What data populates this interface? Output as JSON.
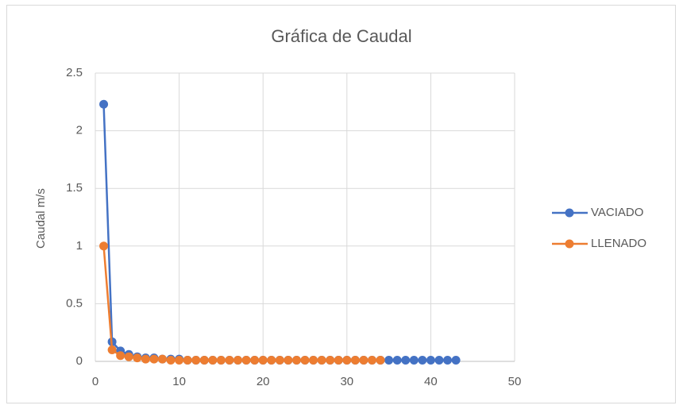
{
  "chart_data": {
    "type": "line",
    "title": "Gráfica de Caudal",
    "y_label": "Caudal m/s",
    "xlim": [
      0,
      50
    ],
    "xticks": [
      0,
      10,
      20,
      30,
      40,
      50
    ],
    "ylim": [
      0,
      2.5
    ],
    "yticks": [
      0,
      0.5,
      1,
      1.5,
      2,
      2.5
    ],
    "grid": true,
    "legend": "right",
    "markers": true,
    "series": [
      {
        "name": "VACIADO",
        "color": "#4472c4",
        "x": [
          1,
          2,
          3,
          4,
          5,
          6,
          7,
          8,
          9,
          10,
          11,
          12,
          13,
          14,
          15,
          16,
          17,
          18,
          19,
          20,
          21,
          22,
          23,
          24,
          25,
          26,
          27,
          28,
          29,
          30,
          31,
          32,
          33,
          34,
          35,
          36,
          37,
          38,
          39,
          40,
          41,
          42,
          43
        ],
        "values": [
          2.23,
          0.17,
          0.09,
          0.06,
          0.04,
          0.03,
          0.03,
          0.02,
          0.02,
          0.02,
          0.01,
          0.01,
          0.01,
          0.01,
          0.01,
          0.01,
          0.01,
          0.01,
          0.01,
          0.01,
          0.01,
          0.01,
          0.01,
          0.01,
          0.01,
          0.01,
          0.01,
          0.01,
          0.01,
          0.01,
          0.01,
          0.01,
          0.01,
          0.01,
          0.01,
          0.01,
          0.01,
          0.01,
          0.01,
          0.01,
          0.01,
          0.01,
          0.01
        ]
      },
      {
        "name": "LLENADO",
        "color": "#ed7d31",
        "x": [
          1,
          2,
          3,
          4,
          5,
          6,
          7,
          8,
          9,
          10,
          11,
          12,
          13,
          14,
          15,
          16,
          17,
          18,
          19,
          20,
          21,
          22,
          23,
          24,
          25,
          26,
          27,
          28,
          29,
          30,
          31,
          32,
          33,
          34
        ],
        "values": [
          1,
          0.1,
          0.05,
          0.04,
          0.03,
          0.02,
          0.02,
          0.02,
          0.01,
          0.01,
          0.01,
          0.01,
          0.01,
          0.01,
          0.01,
          0.01,
          0.01,
          0.01,
          0.01,
          0.01,
          0.01,
          0.01,
          0.01,
          0.01,
          0.01,
          0.01,
          0.01,
          0.01,
          0.01,
          0.01,
          0.01,
          0.01,
          0.01,
          0.01
        ]
      }
    ]
  }
}
